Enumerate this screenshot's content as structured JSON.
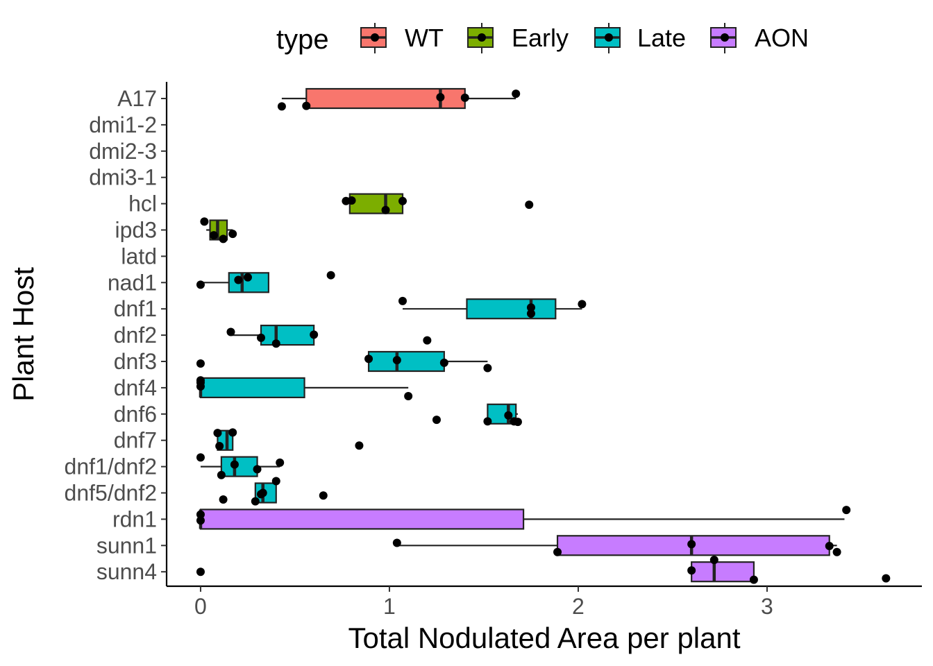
{
  "chart_data": {
    "type": "boxplot",
    "title": "",
    "xlabel": "Total Nodulated Area per plant",
    "ylabel": "Plant Host",
    "xlim": [
      -0.18,
      3.82
    ],
    "xticks": [
      0,
      1,
      2,
      3
    ],
    "grid": false,
    "legend": {
      "title": "type",
      "position": "top",
      "entries": [
        {
          "name": "WT",
          "color": "#F8766D"
        },
        {
          "name": "Early",
          "color": "#7CAE00"
        },
        {
          "name": "Late",
          "color": "#00BFC4"
        },
        {
          "name": "AON",
          "color": "#C77CFF"
        }
      ]
    },
    "categories": [
      "A17",
      "dmi1-2",
      "dmi2-3",
      "dmi3-1",
      "hcl",
      "ipd3",
      "latd",
      "nad1",
      "dnf1",
      "dnf2",
      "dnf3",
      "dnf4",
      "dnf6",
      "dnf7",
      "dnf1/dnf2",
      "dnf5/dnf2",
      "rdn1",
      "sunn1",
      "sunn4"
    ],
    "boxes": [
      {
        "host": "A17",
        "type": "WT",
        "whisker_low": 0.43,
        "q1": 0.56,
        "median": 1.27,
        "q3": 1.4,
        "whisker_high": 1.67,
        "points": [
          [
            0.43,
            0.3
          ],
          [
            0.56,
            0.28
          ],
          [
            1.27,
            -0.05
          ],
          [
            1.4,
            -0.03
          ],
          [
            1.67,
            -0.18
          ]
        ]
      },
      {
        "host": "hcl",
        "type": "Early",
        "whisker_low": 0.79,
        "q1": 0.79,
        "median": 0.98,
        "q3": 1.07,
        "whisker_high": 1.07,
        "points": [
          [
            0.77,
            -0.1
          ],
          [
            0.8,
            -0.12
          ],
          [
            0.98,
            0.24
          ],
          [
            1.07,
            -0.1
          ],
          [
            1.74,
            0.04
          ]
        ]
      },
      {
        "host": "ipd3",
        "type": "Early",
        "whisker_low": 0.03,
        "q1": 0.05,
        "median": 0.09,
        "q3": 0.14,
        "whisker_high": 0.17,
        "points": [
          [
            0.02,
            -0.32
          ],
          [
            0.07,
            0.2
          ],
          [
            0.12,
            0.34
          ],
          [
            0.17,
            0.15
          ]
        ]
      },
      {
        "host": "nad1",
        "type": "Late",
        "whisker_low": 0.0,
        "q1": 0.15,
        "median": 0.22,
        "q3": 0.36,
        "whisker_high": 0.36,
        "points": [
          [
            0.0,
            0.08
          ],
          [
            0.2,
            -0.1
          ],
          [
            0.25,
            -0.2
          ],
          [
            0.69,
            -0.28
          ]
        ]
      },
      {
        "host": "dnf1",
        "type": "Late",
        "whisker_low": 1.07,
        "q1": 1.41,
        "median": 1.75,
        "q3": 1.88,
        "whisker_high": 2.02,
        "points": [
          [
            1.07,
            -0.3
          ],
          [
            1.75,
            -0.05
          ],
          [
            1.75,
            0.18
          ],
          [
            2.02,
            -0.18
          ]
        ]
      },
      {
        "host": "dnf2",
        "type": "Late",
        "whisker_low": 0.16,
        "q1": 0.32,
        "median": 0.4,
        "q3": 0.6,
        "whisker_high": 0.6,
        "points": [
          [
            0.16,
            -0.12
          ],
          [
            0.32,
            0.1
          ],
          [
            0.4,
            0.32
          ],
          [
            0.6,
            -0.02
          ],
          [
            1.2,
            0.2
          ]
        ]
      },
      {
        "host": "dnf3",
        "type": "Late",
        "whisker_low": 0.89,
        "q1": 0.89,
        "median": 1.04,
        "q3": 1.29,
        "whisker_high": 1.52,
        "points": [
          [
            0.0,
            0.08
          ],
          [
            0.89,
            -0.1
          ],
          [
            1.04,
            -0.05
          ],
          [
            1.29,
            0.05
          ],
          [
            1.52,
            0.25
          ]
        ]
      },
      {
        "host": "dnf4",
        "type": "Late",
        "whisker_low": 0.0,
        "q1": 0.0,
        "median": 0.0,
        "q3": 0.55,
        "whisker_high": 1.1,
        "points": [
          [
            0.0,
            -0.28
          ],
          [
            0.0,
            -0.2
          ],
          [
            0.0,
            -0.05
          ],
          [
            1.1,
            0.32
          ]
        ]
      },
      {
        "host": "dnf6",
        "type": "Late",
        "whisker_low": 1.52,
        "q1": 1.52,
        "median": 1.63,
        "q3": 1.67,
        "whisker_high": 1.68,
        "points": [
          [
            1.25,
            0.22
          ],
          [
            1.52,
            0.28
          ],
          [
            1.63,
            0.05
          ],
          [
            1.66,
            0.28
          ],
          [
            1.68,
            0.3
          ]
        ]
      },
      {
        "host": "dnf7",
        "type": "Late",
        "whisker_low": 0.09,
        "q1": 0.09,
        "median": 0.14,
        "q3": 0.17,
        "whisker_high": 0.17,
        "points": [
          [
            0.09,
            -0.28
          ],
          [
            0.1,
            0.22
          ],
          [
            0.17,
            -0.3
          ],
          [
            0.84,
            0.2
          ]
        ]
      },
      {
        "host": "dnf1/dnf2",
        "type": "Late",
        "whisker_low": 0.0,
        "q1": 0.11,
        "median": 0.18,
        "q3": 0.3,
        "whisker_high": 0.42,
        "points": [
          [
            0.0,
            -0.35
          ],
          [
            0.11,
            0.32
          ],
          [
            0.18,
            -0.08
          ],
          [
            0.3,
            0.1
          ],
          [
            0.42,
            -0.15
          ]
        ]
      },
      {
        "host": "dnf5/dnf2",
        "type": "Late",
        "whisker_low": 0.29,
        "q1": 0.29,
        "median": 0.33,
        "q3": 0.4,
        "whisker_high": 0.4,
        "points": [
          [
            0.12,
            0.25
          ],
          [
            0.29,
            0.32
          ],
          [
            0.32,
            0.05
          ],
          [
            0.33,
            0.0
          ],
          [
            0.4,
            -0.45
          ],
          [
            0.65,
            0.1
          ]
        ]
      },
      {
        "host": "rdn1",
        "type": "AON",
        "whisker_low": 0.0,
        "q1": 0.0,
        "median": 0.0,
        "q3": 1.71,
        "whisker_high": 3.41,
        "points": [
          [
            0.0,
            -0.18
          ],
          [
            0.0,
            0.05
          ],
          [
            3.42,
            -0.35
          ]
        ]
      },
      {
        "host": "sunn1",
        "type": "AON",
        "whisker_low": 1.04,
        "q1": 1.89,
        "median": 2.6,
        "q3": 3.33,
        "whisker_high": 3.37,
        "points": [
          [
            1.04,
            -0.1
          ],
          [
            1.89,
            0.25
          ],
          [
            2.6,
            -0.05
          ],
          [
            3.33,
            0.02
          ],
          [
            3.37,
            0.25
          ]
        ]
      },
      {
        "host": "sunn4",
        "type": "AON",
        "whisker_low": 2.6,
        "q1": 2.6,
        "median": 2.72,
        "q3": 2.93,
        "whisker_high": 2.93,
        "points": [
          [
            0.0,
            0.0
          ],
          [
            2.6,
            -0.05
          ],
          [
            2.72,
            -0.45
          ],
          [
            2.93,
            0.3
          ],
          [
            3.63,
            0.25
          ]
        ]
      }
    ]
  }
}
